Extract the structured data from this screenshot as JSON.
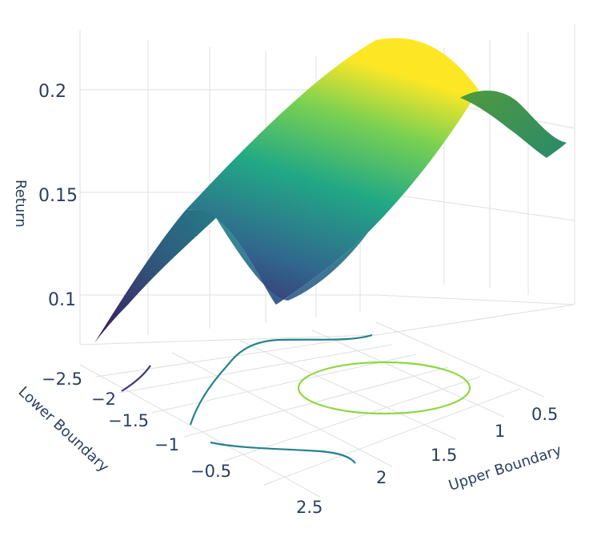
{
  "chart_data": {
    "type": "surface",
    "title": "",
    "xlabel": "Lower Boundary",
    "ylabel": "Upper Boundary",
    "zlabel": "Return",
    "x_ticks": [
      "−2.5",
      "−2",
      "−1.5",
      "−1",
      "−0.5"
    ],
    "y_ticks": [
      "0.5",
      "1",
      "1.5",
      "2",
      "2.5"
    ],
    "z_ticks": [
      "0.1",
      "0.15",
      "0.2"
    ],
    "xlim": [
      -2.6,
      -0.3
    ],
    "ylim": [
      0.3,
      2.7
    ],
    "zlim": [
      0.08,
      0.23
    ],
    "grid": true,
    "colorscale": "Viridis",
    "contours": [
      {
        "level": 0.105,
        "color": "#3b518b"
      },
      {
        "level": 0.14,
        "color": "#21908d"
      },
      {
        "level": 0.205,
        "color": "#8fd744"
      }
    ]
  }
}
